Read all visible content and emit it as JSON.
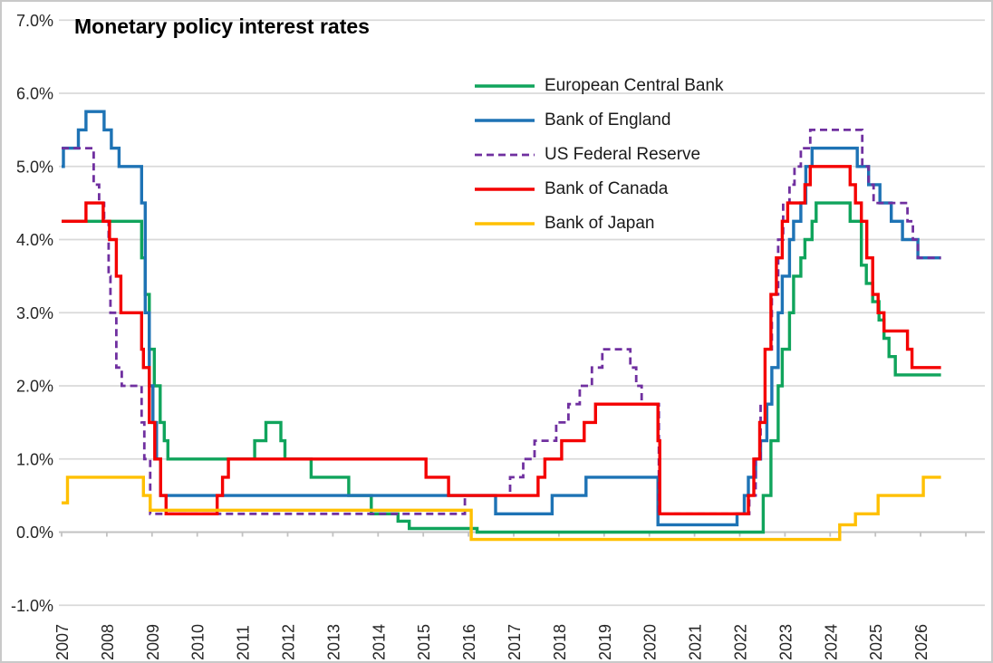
{
  "chart": {
    "title": "Monetary policy interest rates",
    "y_axis": {
      "tick_labels": [
        "7.0%",
        "6.0%",
        "5.0%",
        "4.0%",
        "3.0%",
        "2.0%",
        "1.0%",
        "0.0%",
        "-1.0%"
      ],
      "tick_values": [
        7,
        6,
        5,
        4,
        3,
        2,
        1,
        0,
        -1
      ]
    },
    "x_axis": {
      "tick_labels": [
        "2007",
        "2008",
        "2009",
        "2010",
        "2011",
        "2012",
        "2013",
        "2014",
        "2015",
        "2016",
        "2017",
        "2018",
        "2019",
        "2020",
        "2021",
        "2022",
        "2023",
        "2024",
        "2025",
        "2026"
      ],
      "tick_values": [
        2007,
        2008,
        2009,
        2010,
        2011,
        2012,
        2013,
        2014,
        2015,
        2016,
        2017,
        2018,
        2019,
        2020,
        2021,
        2022,
        2023,
        2024,
        2025,
        2026
      ]
    },
    "colors": {
      "grid": "#d9d9d9",
      "axis": "#c2c2c2",
      "text": "#262626",
      "title": "#000000",
      "border": "#c9c9c9"
    }
  },
  "chart_data": {
    "type": "line",
    "title": "Monetary policy interest rates",
    "xlabel": "",
    "ylabel": "",
    "units": "percent",
    "step_interpolation": true,
    "grid": "horizontal",
    "legend_position": "inside-top-center",
    "xlim": [
      2006.73,
      2027.4
    ],
    "ylim": [
      -1,
      7
    ],
    "x_end": 2026.45,
    "series": [
      {
        "name": "European Central Bank",
        "color": "#10a45c",
        "line_style": "solid",
        "points": [
          [
            2007.0,
            4.25
          ],
          [
            2008.77,
            3.75
          ],
          [
            2008.85,
            3.25
          ],
          [
            2008.94,
            2.5
          ],
          [
            2009.05,
            2.0
          ],
          [
            2009.18,
            1.5
          ],
          [
            2009.27,
            1.25
          ],
          [
            2009.35,
            1.0
          ],
          [
            2011.27,
            1.25
          ],
          [
            2011.52,
            1.5
          ],
          [
            2011.85,
            1.25
          ],
          [
            2011.94,
            1.0
          ],
          [
            2012.52,
            0.75
          ],
          [
            2013.35,
            0.5
          ],
          [
            2013.85,
            0.25
          ],
          [
            2014.44,
            0.15
          ],
          [
            2014.69,
            0.05
          ],
          [
            2016.19,
            0.0
          ],
          [
            2022.52,
            0.5
          ],
          [
            2022.69,
            1.25
          ],
          [
            2022.85,
            2.0
          ],
          [
            2022.94,
            2.5
          ],
          [
            2023.1,
            3.0
          ],
          [
            2023.19,
            3.5
          ],
          [
            2023.35,
            3.75
          ],
          [
            2023.44,
            4.0
          ],
          [
            2023.6,
            4.25
          ],
          [
            2023.69,
            4.5
          ],
          [
            2024.44,
            4.25
          ],
          [
            2024.69,
            3.65
          ],
          [
            2024.8,
            3.4
          ],
          [
            2024.94,
            3.15
          ],
          [
            2025.08,
            2.9
          ],
          [
            2025.19,
            2.65
          ],
          [
            2025.3,
            2.4
          ],
          [
            2025.44,
            2.15
          ]
        ]
      },
      {
        "name": "Bank of England",
        "color": "#1e73b5",
        "line_style": "solid",
        "points": [
          [
            2007.0,
            5.0
          ],
          [
            2007.04,
            5.25
          ],
          [
            2007.37,
            5.5
          ],
          [
            2007.54,
            5.75
          ],
          [
            2007.94,
            5.5
          ],
          [
            2008.1,
            5.25
          ],
          [
            2008.27,
            5.0
          ],
          [
            2008.77,
            4.5
          ],
          [
            2008.85,
            3.0
          ],
          [
            2008.94,
            2.0
          ],
          [
            2009.02,
            1.5
          ],
          [
            2009.1,
            1.0
          ],
          [
            2009.19,
            0.5
          ],
          [
            2016.6,
            0.25
          ],
          [
            2017.85,
            0.5
          ],
          [
            2018.6,
            0.75
          ],
          [
            2020.19,
            0.1
          ],
          [
            2021.94,
            0.25
          ],
          [
            2022.1,
            0.5
          ],
          [
            2022.19,
            0.75
          ],
          [
            2022.35,
            1.0
          ],
          [
            2022.46,
            1.25
          ],
          [
            2022.6,
            1.75
          ],
          [
            2022.71,
            2.25
          ],
          [
            2022.85,
            3.0
          ],
          [
            2022.94,
            3.5
          ],
          [
            2023.1,
            4.0
          ],
          [
            2023.19,
            4.25
          ],
          [
            2023.35,
            4.5
          ],
          [
            2023.46,
            5.0
          ],
          [
            2023.6,
            5.25
          ],
          [
            2024.6,
            5.0
          ],
          [
            2024.85,
            4.75
          ],
          [
            2025.1,
            4.5
          ],
          [
            2025.35,
            4.25
          ],
          [
            2025.6,
            4.0
          ],
          [
            2025.94,
            3.75
          ]
        ]
      },
      {
        "name": "US Federal Reserve",
        "color": "#7030a0",
        "line_style": "dashed",
        "points": [
          [
            2007.0,
            5.25
          ],
          [
            2007.71,
            4.75
          ],
          [
            2007.83,
            4.5
          ],
          [
            2007.94,
            4.25
          ],
          [
            2008.04,
            3.5
          ],
          [
            2008.08,
            3.0
          ],
          [
            2008.21,
            2.25
          ],
          [
            2008.33,
            2.0
          ],
          [
            2008.77,
            1.5
          ],
          [
            2008.83,
            1.0
          ],
          [
            2008.96,
            0.25
          ],
          [
            2015.92,
            0.5
          ],
          [
            2016.92,
            0.75
          ],
          [
            2017.21,
            1.0
          ],
          [
            2017.46,
            1.25
          ],
          [
            2017.94,
            1.5
          ],
          [
            2018.21,
            1.75
          ],
          [
            2018.46,
            2.0
          ],
          [
            2018.73,
            2.25
          ],
          [
            2018.96,
            2.5
          ],
          [
            2019.58,
            2.25
          ],
          [
            2019.71,
            2.0
          ],
          [
            2019.83,
            1.75
          ],
          [
            2020.21,
            0.25
          ],
          [
            2022.21,
            0.5
          ],
          [
            2022.35,
            1.0
          ],
          [
            2022.46,
            1.75
          ],
          [
            2022.56,
            2.5
          ],
          [
            2022.71,
            3.25
          ],
          [
            2022.85,
            4.0
          ],
          [
            2022.96,
            4.5
          ],
          [
            2023.1,
            4.75
          ],
          [
            2023.21,
            5.0
          ],
          [
            2023.35,
            5.25
          ],
          [
            2023.56,
            5.5
          ],
          [
            2024.71,
            5.0
          ],
          [
            2024.85,
            4.75
          ],
          [
            2024.96,
            4.5
          ],
          [
            2025.71,
            4.25
          ],
          [
            2025.83,
            4.0
          ],
          [
            2025.94,
            3.75
          ]
        ]
      },
      {
        "name": "Bank of Canada",
        "color": "#f40000",
        "line_style": "solid",
        "points": [
          [
            2007.0,
            4.25
          ],
          [
            2007.54,
            4.5
          ],
          [
            2007.92,
            4.25
          ],
          [
            2008.06,
            4.0
          ],
          [
            2008.21,
            3.5
          ],
          [
            2008.31,
            3.0
          ],
          [
            2008.77,
            2.5
          ],
          [
            2008.81,
            2.25
          ],
          [
            2008.94,
            1.5
          ],
          [
            2009.06,
            1.0
          ],
          [
            2009.19,
            0.5
          ],
          [
            2009.31,
            0.25
          ],
          [
            2010.44,
            0.5
          ],
          [
            2010.56,
            0.75
          ],
          [
            2010.69,
            1.0
          ],
          [
            2015.06,
            0.75
          ],
          [
            2015.56,
            0.5
          ],
          [
            2017.54,
            0.75
          ],
          [
            2017.69,
            1.0
          ],
          [
            2018.06,
            1.25
          ],
          [
            2018.56,
            1.5
          ],
          [
            2018.81,
            1.75
          ],
          [
            2020.19,
            1.25
          ],
          [
            2020.23,
            0.25
          ],
          [
            2022.19,
            0.5
          ],
          [
            2022.31,
            1.0
          ],
          [
            2022.44,
            1.5
          ],
          [
            2022.56,
            2.5
          ],
          [
            2022.69,
            3.25
          ],
          [
            2022.81,
            3.75
          ],
          [
            2022.94,
            4.25
          ],
          [
            2023.06,
            4.5
          ],
          [
            2023.44,
            4.75
          ],
          [
            2023.56,
            5.0
          ],
          [
            2024.44,
            4.75
          ],
          [
            2024.56,
            4.5
          ],
          [
            2024.69,
            4.25
          ],
          [
            2024.81,
            3.75
          ],
          [
            2024.94,
            3.25
          ],
          [
            2025.06,
            3.0
          ],
          [
            2025.19,
            2.75
          ],
          [
            2025.71,
            2.5
          ],
          [
            2025.81,
            2.25
          ]
        ]
      },
      {
        "name": "Bank of Japan",
        "color": "#ffc000",
        "line_style": "solid",
        "points": [
          [
            2007.0,
            0.4
          ],
          [
            2007.13,
            0.75
          ],
          [
            2008.81,
            0.5
          ],
          [
            2008.96,
            0.3
          ],
          [
            2016.06,
            -0.1
          ],
          [
            2024.21,
            0.1
          ],
          [
            2024.56,
            0.25
          ],
          [
            2025.06,
            0.5
          ],
          [
            2026.06,
            0.75
          ]
        ]
      }
    ]
  }
}
